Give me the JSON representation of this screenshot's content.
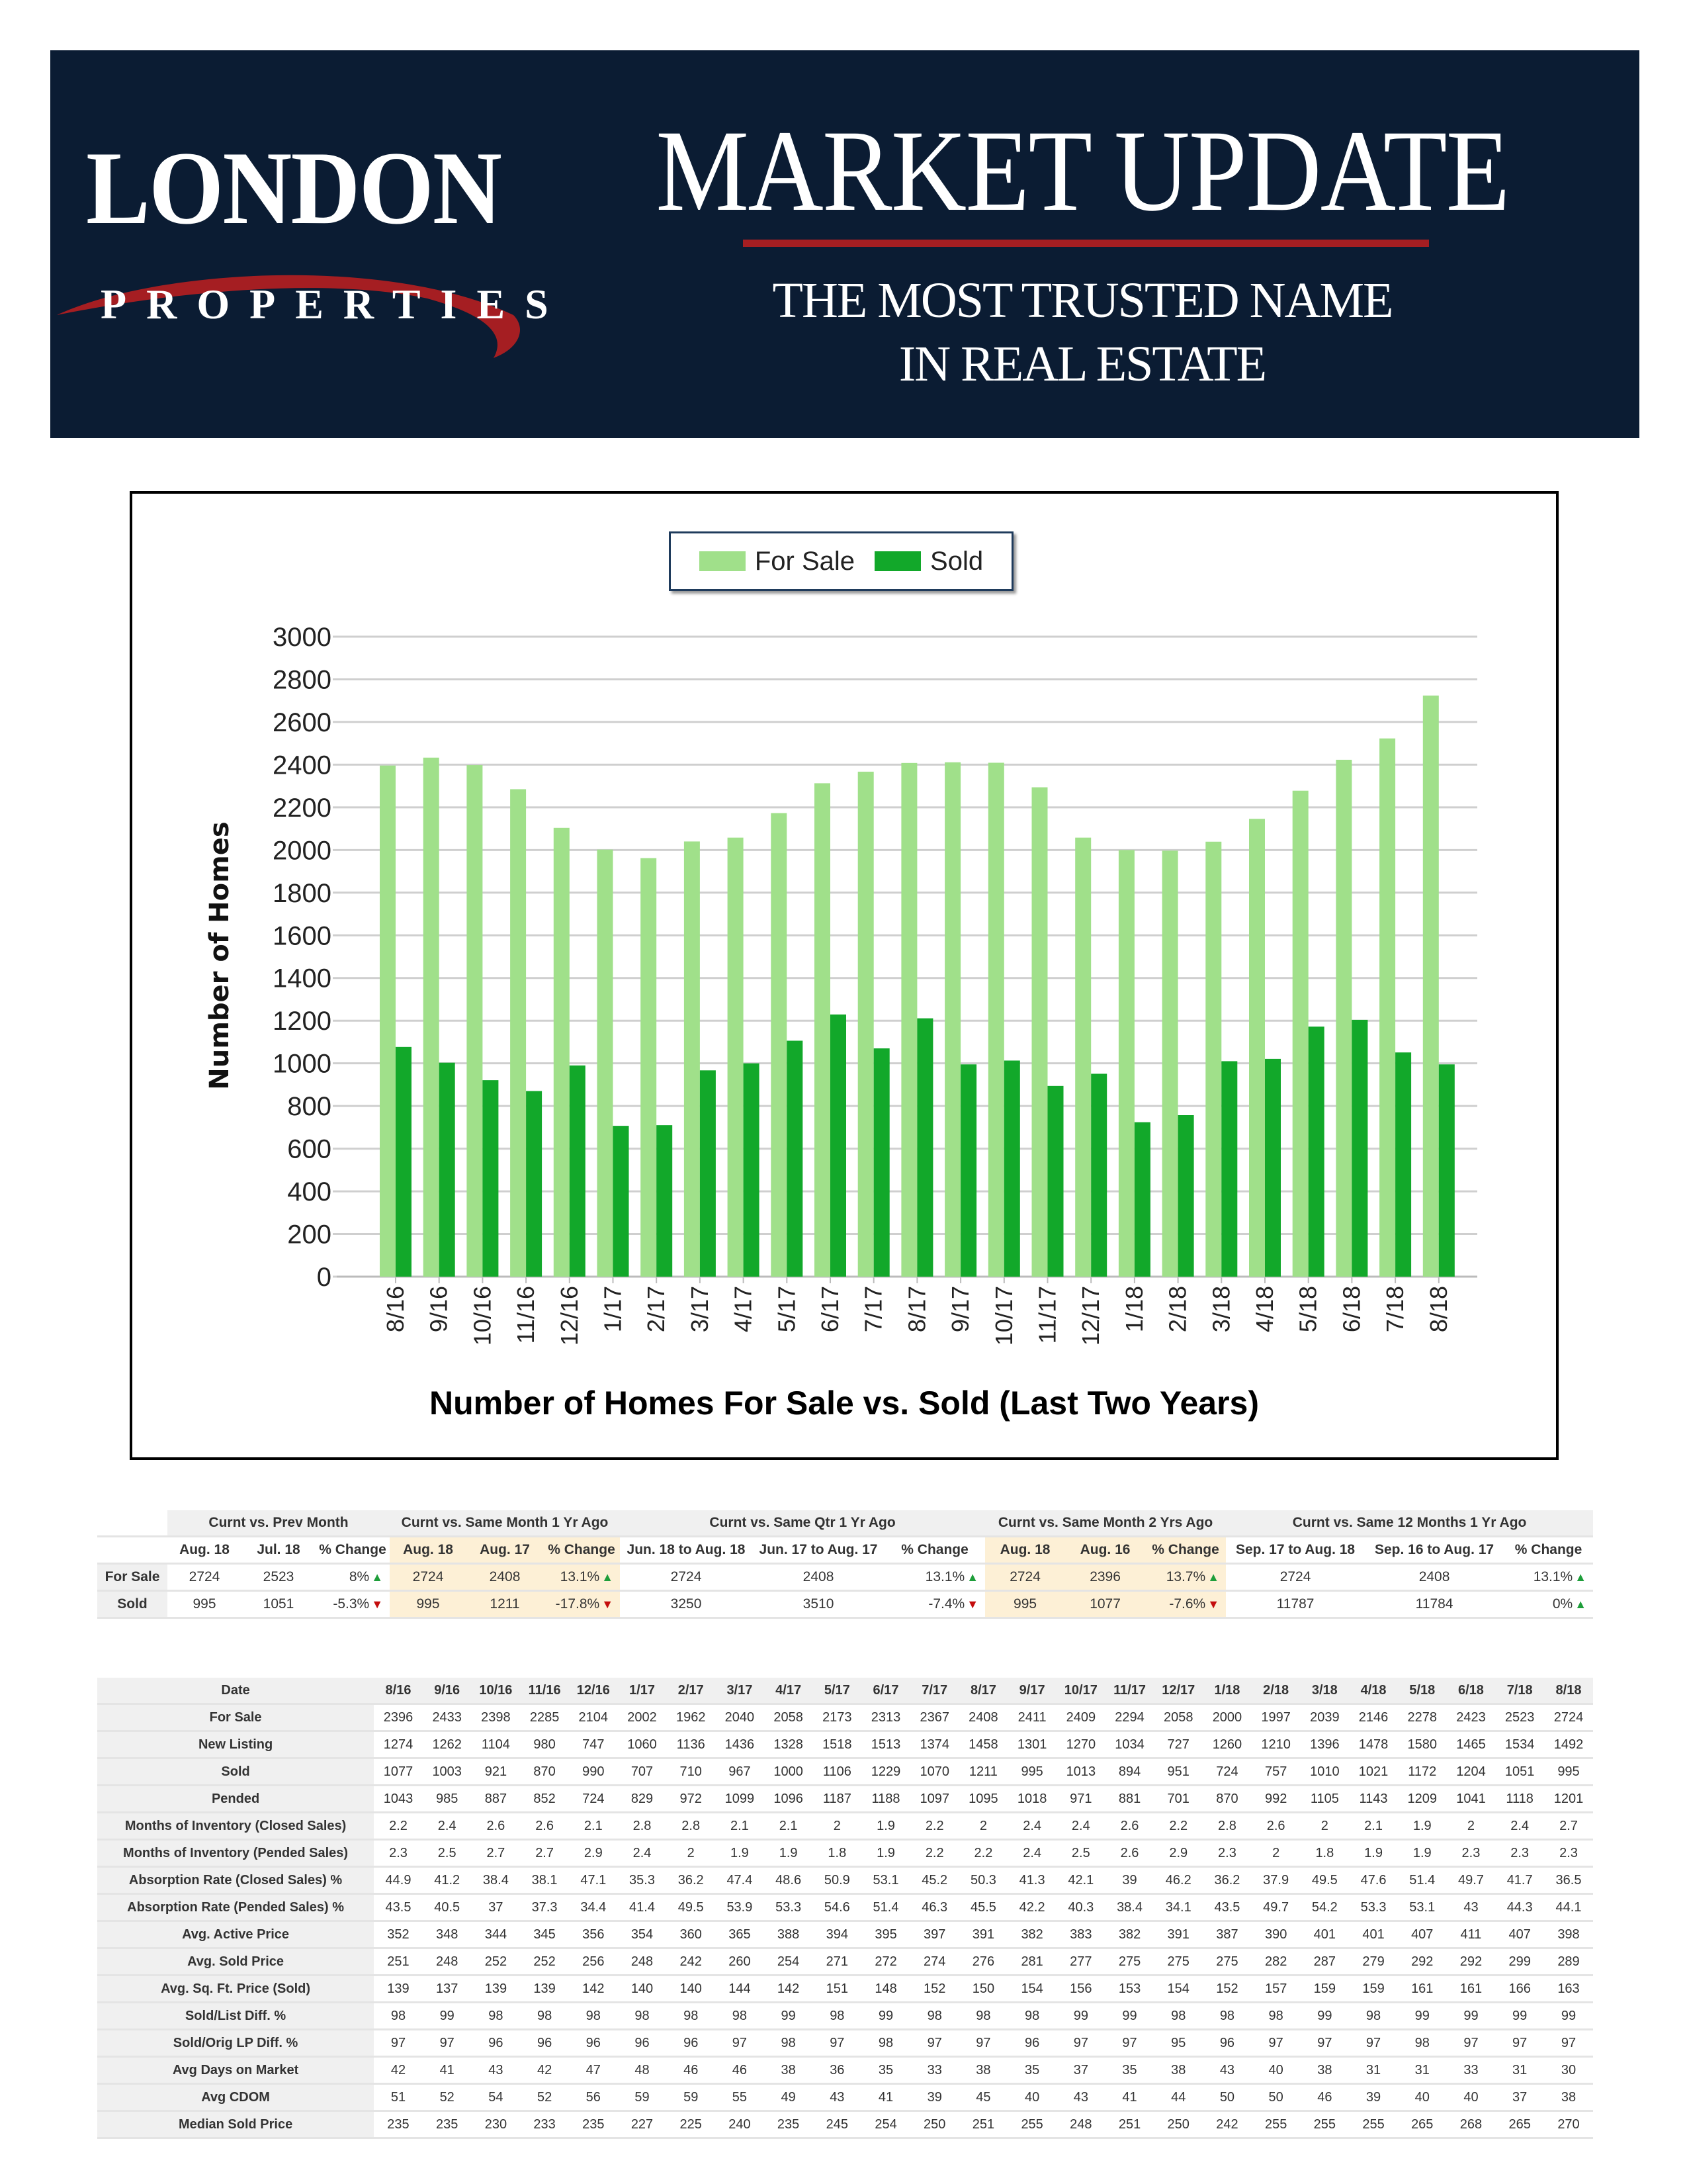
{
  "header": {
    "logo": {
      "line1": "LONDON",
      "line2": "PROPERTIES"
    },
    "title": "MARKET UPDATE",
    "tagline_lines": [
      "THE MOST TRUSTED NAME",
      "IN REAL ESTATE"
    ],
    "colors": {
      "background": "#0b1c33",
      "accent": "#a51e22"
    }
  },
  "chart_data": {
    "type": "bar",
    "title": "Number of Homes For Sale vs. Sold (Last Two Years)",
    "xlabel": "",
    "ylabel": "Number of Homes",
    "ylim": [
      0,
      3000
    ],
    "ytick_step": 200,
    "grid": true,
    "legend": "top-center",
    "categories": [
      "8/16",
      "9/16",
      "10/16",
      "11/16",
      "12/16",
      "1/17",
      "2/17",
      "3/17",
      "4/17",
      "5/17",
      "6/17",
      "7/17",
      "8/17",
      "9/17",
      "10/17",
      "11/17",
      "12/17",
      "1/18",
      "2/18",
      "3/18",
      "4/18",
      "5/18",
      "6/18",
      "7/18",
      "8/18"
    ],
    "series": [
      {
        "name": "For Sale",
        "color": "#a0e08a",
        "values": [
          2396,
          2433,
          2398,
          2285,
          2104,
          2002,
          1962,
          2040,
          2058,
          2173,
          2313,
          2367,
          2408,
          2411,
          2409,
          2294,
          2058,
          2000,
          1997,
          2039,
          2146,
          2278,
          2423,
          2523,
          2724
        ]
      },
      {
        "name": "Sold",
        "color": "#12a82a",
        "values": [
          1077,
          1003,
          921,
          870,
          990,
          707,
          710,
          967,
          1000,
          1106,
          1229,
          1070,
          1211,
          995,
          1013,
          894,
          951,
          724,
          757,
          1010,
          1021,
          1172,
          1204,
          1051,
          995
        ]
      }
    ]
  },
  "comparison_table": {
    "groups": [
      {
        "label": "Curnt vs. Prev Month",
        "highlight": false,
        "columns": [
          "Aug. 18",
          "Jul. 18",
          "% Change"
        ]
      },
      {
        "label": "Curnt vs. Same Month 1 Yr Ago",
        "highlight": true,
        "columns": [
          "Aug. 18",
          "Aug. 17",
          "% Change"
        ]
      },
      {
        "label": "Curnt vs. Same Qtr 1 Yr Ago",
        "highlight": false,
        "columns": [
          "Jun. 18 to Aug. 18",
          "Jun. 17 to Aug. 17",
          "% Change"
        ]
      },
      {
        "label": "Curnt vs. Same Month 2 Yrs Ago",
        "highlight": true,
        "columns": [
          "Aug. 18",
          "Aug. 16",
          "% Change"
        ]
      },
      {
        "label": "Curnt vs. Same 12 Months 1 Yr Ago",
        "highlight": false,
        "columns": [
          "Sep. 17 to Aug. 18",
          "Sep. 16 to Aug. 17",
          "% Change"
        ]
      }
    ],
    "rows": [
      {
        "label": "For Sale",
        "values": [
          "2724",
          "2523",
          "8%",
          "2724",
          "2408",
          "13.1%",
          "2724",
          "2408",
          "13.1%",
          "2724",
          "2396",
          "13.7%",
          "2724",
          "2408",
          "13.1%"
        ],
        "trends": [
          "up",
          "up",
          "up",
          "up",
          "up"
        ]
      },
      {
        "label": "Sold",
        "values": [
          "995",
          "1051",
          "-5.3%",
          "995",
          "1211",
          "-17.8%",
          "3250",
          "3510",
          "-7.4%",
          "995",
          "1077",
          "-7.6%",
          "11787",
          "11784",
          "0%"
        ],
        "trends": [
          "down",
          "down",
          "down",
          "down",
          "up"
        ]
      }
    ]
  },
  "history_table": {
    "header_label": "Date",
    "dates": [
      "8/16",
      "9/16",
      "10/16",
      "11/16",
      "12/16",
      "1/17",
      "2/17",
      "3/17",
      "4/17",
      "5/17",
      "6/17",
      "7/17",
      "8/17",
      "9/17",
      "10/17",
      "11/17",
      "12/17",
      "1/18",
      "2/18",
      "3/18",
      "4/18",
      "5/18",
      "6/18",
      "7/18",
      "8/18"
    ],
    "rows": [
      {
        "label": "For Sale",
        "values": [
          "2396",
          "2433",
          "2398",
          "2285",
          "2104",
          "2002",
          "1962",
          "2040",
          "2058",
          "2173",
          "2313",
          "2367",
          "2408",
          "2411",
          "2409",
          "2294",
          "2058",
          "2000",
          "1997",
          "2039",
          "2146",
          "2278",
          "2423",
          "2523",
          "2724"
        ]
      },
      {
        "label": "New Listing",
        "values": [
          "1274",
          "1262",
          "1104",
          "980",
          "747",
          "1060",
          "1136",
          "1436",
          "1328",
          "1518",
          "1513",
          "1374",
          "1458",
          "1301",
          "1270",
          "1034",
          "727",
          "1260",
          "1210",
          "1396",
          "1478",
          "1580",
          "1465",
          "1534",
          "1492"
        ]
      },
      {
        "label": "Sold",
        "values": [
          "1077",
          "1003",
          "921",
          "870",
          "990",
          "707",
          "710",
          "967",
          "1000",
          "1106",
          "1229",
          "1070",
          "1211",
          "995",
          "1013",
          "894",
          "951",
          "724",
          "757",
          "1010",
          "1021",
          "1172",
          "1204",
          "1051",
          "995"
        ]
      },
      {
        "label": "Pended",
        "values": [
          "1043",
          "985",
          "887",
          "852",
          "724",
          "829",
          "972",
          "1099",
          "1096",
          "1187",
          "1188",
          "1097",
          "1095",
          "1018",
          "971",
          "881",
          "701",
          "870",
          "992",
          "1105",
          "1143",
          "1209",
          "1041",
          "1118",
          "1201"
        ]
      },
      {
        "label": "Months of Inventory (Closed Sales)",
        "values": [
          "2.2",
          "2.4",
          "2.6",
          "2.6",
          "2.1",
          "2.8",
          "2.8",
          "2.1",
          "2.1",
          "2",
          "1.9",
          "2.2",
          "2",
          "2.4",
          "2.4",
          "2.6",
          "2.2",
          "2.8",
          "2.6",
          "2",
          "2.1",
          "1.9",
          "2",
          "2.4",
          "2.7"
        ]
      },
      {
        "label": "Months of Inventory (Pended Sales)",
        "values": [
          "2.3",
          "2.5",
          "2.7",
          "2.7",
          "2.9",
          "2.4",
          "2",
          "1.9",
          "1.9",
          "1.8",
          "1.9",
          "2.2",
          "2.2",
          "2.4",
          "2.5",
          "2.6",
          "2.9",
          "2.3",
          "2",
          "1.8",
          "1.9",
          "1.9",
          "2.3",
          "2.3",
          "2.3"
        ]
      },
      {
        "label": "Absorption Rate (Closed Sales) %",
        "values": [
          "44.9",
          "41.2",
          "38.4",
          "38.1",
          "47.1",
          "35.3",
          "36.2",
          "47.4",
          "48.6",
          "50.9",
          "53.1",
          "45.2",
          "50.3",
          "41.3",
          "42.1",
          "39",
          "46.2",
          "36.2",
          "37.9",
          "49.5",
          "47.6",
          "51.4",
          "49.7",
          "41.7",
          "36.5"
        ]
      },
      {
        "label": "Absorption Rate (Pended Sales) %",
        "values": [
          "43.5",
          "40.5",
          "37",
          "37.3",
          "34.4",
          "41.4",
          "49.5",
          "53.9",
          "53.3",
          "54.6",
          "51.4",
          "46.3",
          "45.5",
          "42.2",
          "40.3",
          "38.4",
          "34.1",
          "43.5",
          "49.7",
          "54.2",
          "53.3",
          "53.1",
          "43",
          "44.3",
          "44.1"
        ]
      },
      {
        "label": "Avg. Active Price",
        "values": [
          "352",
          "348",
          "344",
          "345",
          "356",
          "354",
          "360",
          "365",
          "388",
          "394",
          "395",
          "397",
          "391",
          "382",
          "383",
          "382",
          "391",
          "387",
          "390",
          "401",
          "401",
          "407",
          "411",
          "407",
          "398"
        ]
      },
      {
        "label": "Avg. Sold Price",
        "values": [
          "251",
          "248",
          "252",
          "252",
          "256",
          "248",
          "242",
          "260",
          "254",
          "271",
          "272",
          "274",
          "276",
          "281",
          "277",
          "275",
          "275",
          "275",
          "282",
          "287",
          "279",
          "292",
          "292",
          "299",
          "289"
        ]
      },
      {
        "label": "Avg. Sq. Ft. Price (Sold)",
        "values": [
          "139",
          "137",
          "139",
          "139",
          "142",
          "140",
          "140",
          "144",
          "142",
          "151",
          "148",
          "152",
          "150",
          "154",
          "156",
          "153",
          "154",
          "152",
          "157",
          "159",
          "159",
          "161",
          "161",
          "166",
          "163"
        ]
      },
      {
        "label": "Sold/List Diff. %",
        "values": [
          "98",
          "99",
          "98",
          "98",
          "98",
          "98",
          "98",
          "98",
          "99",
          "98",
          "99",
          "98",
          "98",
          "98",
          "99",
          "99",
          "98",
          "98",
          "98",
          "99",
          "98",
          "99",
          "99",
          "99",
          "99"
        ]
      },
      {
        "label": "Sold/Orig LP Diff. %",
        "values": [
          "97",
          "97",
          "96",
          "96",
          "96",
          "96",
          "96",
          "97",
          "98",
          "97",
          "98",
          "97",
          "97",
          "96",
          "97",
          "97",
          "95",
          "96",
          "97",
          "97",
          "97",
          "98",
          "97",
          "97",
          "97"
        ]
      },
      {
        "label": "Avg Days on Market",
        "values": [
          "42",
          "41",
          "43",
          "42",
          "47",
          "48",
          "46",
          "46",
          "38",
          "36",
          "35",
          "33",
          "38",
          "35",
          "37",
          "35",
          "38",
          "43",
          "40",
          "38",
          "31",
          "31",
          "33",
          "31",
          "30"
        ]
      },
      {
        "label": "Avg CDOM",
        "values": [
          "51",
          "52",
          "54",
          "52",
          "56",
          "59",
          "59",
          "55",
          "49",
          "43",
          "41",
          "39",
          "45",
          "40",
          "43",
          "41",
          "44",
          "50",
          "50",
          "46",
          "39",
          "40",
          "40",
          "37",
          "38"
        ]
      },
      {
        "label": "Median Sold Price",
        "values": [
          "235",
          "235",
          "230",
          "233",
          "235",
          "227",
          "225",
          "240",
          "235",
          "245",
          "254",
          "250",
          "251",
          "255",
          "248",
          "251",
          "250",
          "242",
          "255",
          "255",
          "255",
          "265",
          "268",
          "265",
          "270"
        ]
      }
    ]
  }
}
